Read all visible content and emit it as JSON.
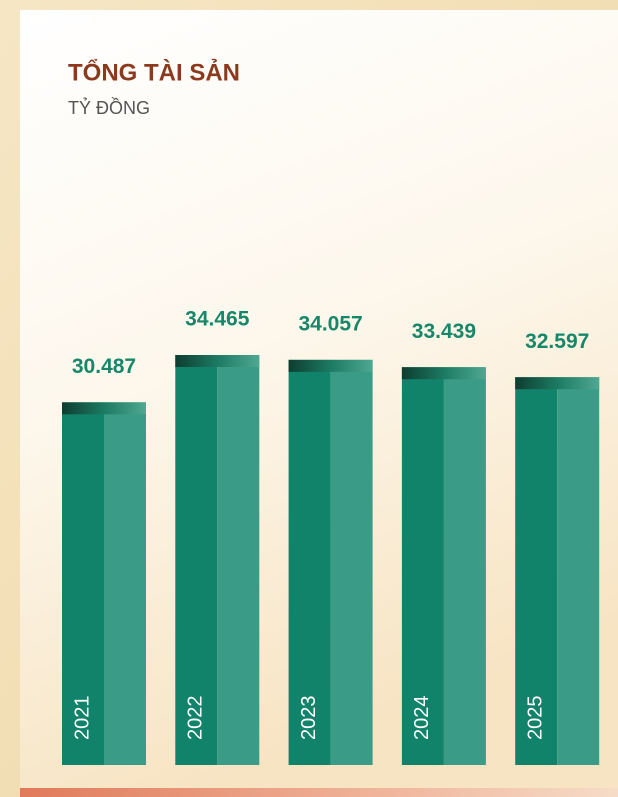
{
  "chart_data": {
    "type": "bar",
    "title": "TỔNG TÀI SẢN",
    "subtitle": "TỶ ĐỒNG",
    "categories": [
      "2021",
      "2022",
      "2023",
      "2024",
      "2025"
    ],
    "values": [
      30487,
      34465,
      34057,
      33439,
      32597
    ],
    "value_labels": [
      "30.487",
      "34.465",
      "34.057",
      "33.439",
      "32.597"
    ],
    "color": "#11836a"
  }
}
